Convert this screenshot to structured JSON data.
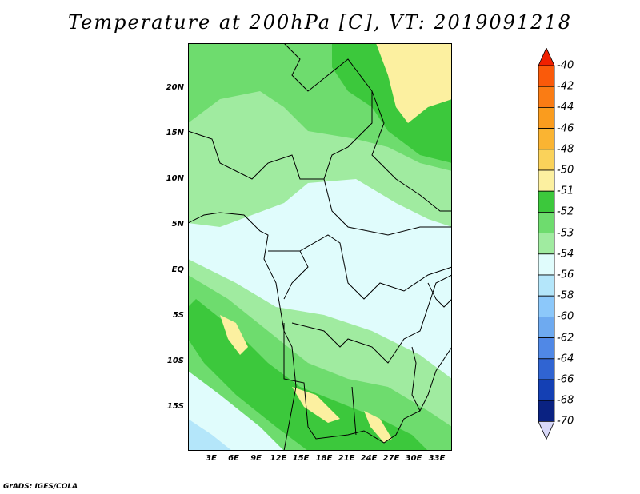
{
  "title": "Temperature at 200hPa [C], VT: 2019091218",
  "credit": "GrADS: IGES/COLA",
  "map": {
    "lat_labels": [
      "20N",
      "15N",
      "10N",
      "5N",
      "EQ",
      "5S",
      "10S",
      "15S"
    ],
    "lon_labels": [
      "3E",
      "6E",
      "9E",
      "12E",
      "15E",
      "18E",
      "21E",
      "24E",
      "27E",
      "30E",
      "33E"
    ],
    "lon_range": [
      0,
      35
    ],
    "lat_range": [
      -19.5,
      24.5
    ]
  },
  "colorbar": {
    "labels": [
      "-40",
      "-42",
      "-44",
      "-46",
      "-48",
      "-50",
      "-51",
      "-52",
      "-53",
      "-54",
      "-56",
      "-58",
      "-60",
      "-62",
      "-64",
      "-66",
      "-68",
      "-70"
    ],
    "colors": [
      "#f02000",
      "#fa5a0a",
      "#fa7c14",
      "#fa9c1e",
      "#fab432",
      "#fad25a",
      "#fcf0a0",
      "#3cc83c",
      "#6edc6e",
      "#a0eba0",
      "#e0fcfc",
      "#b4e6fa",
      "#8cc8fa",
      "#6eaaf0",
      "#5088e6",
      "#3064d2",
      "#1440b4",
      "#0a2282",
      "#d8d8f8"
    ]
  }
}
